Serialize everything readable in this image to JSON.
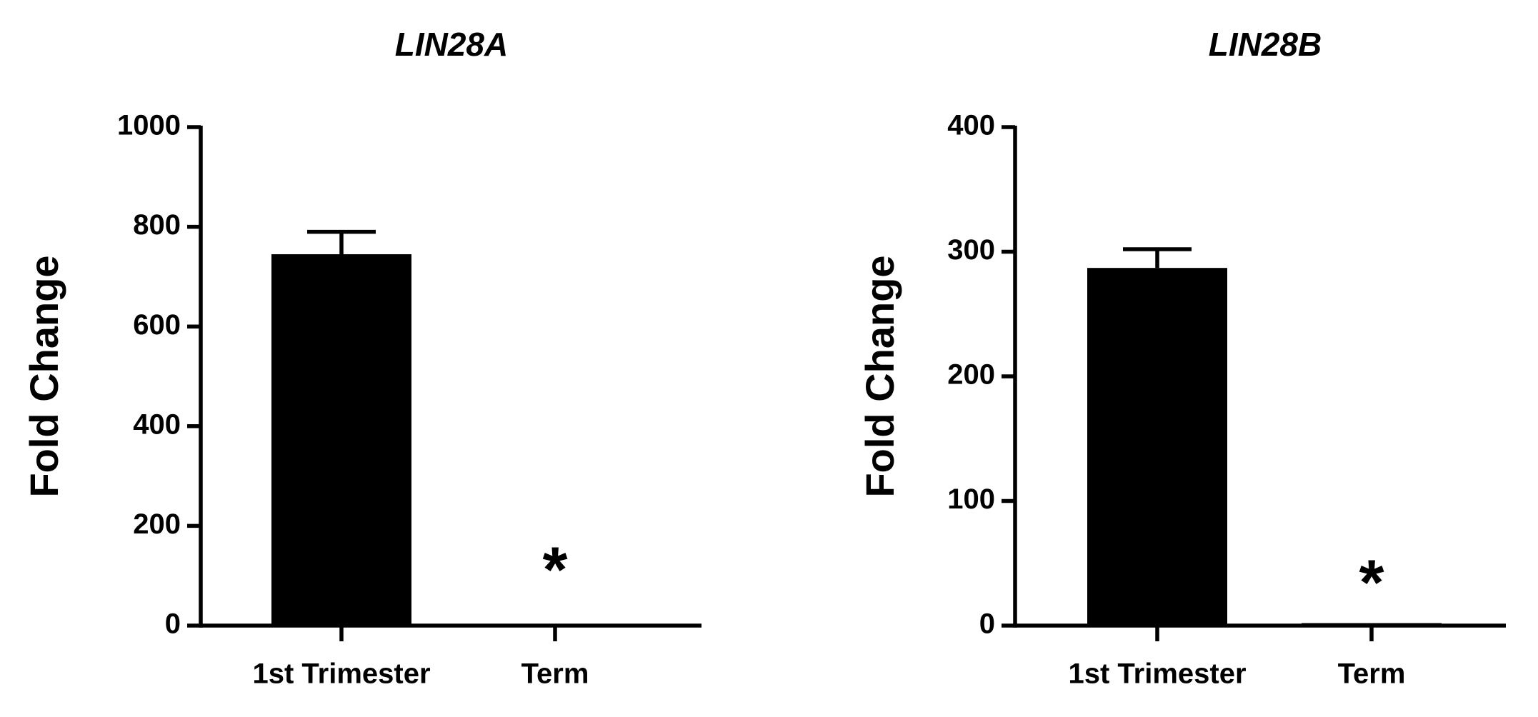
{
  "chart_data": [
    {
      "type": "bar",
      "title": "LIN28A",
      "y_label": "Fold Change",
      "categories": [
        "1st Trimester",
        "Term"
      ],
      "values": [
        745,
        2
      ],
      "errors": [
        45,
        null
      ],
      "annotations": [
        null,
        "*"
      ],
      "color": "#000000",
      "ylim": [
        0,
        1000
      ],
      "yticks": [
        0,
        200,
        400,
        600,
        800,
        1000
      ]
    },
    {
      "type": "bar",
      "title": "LIN28B",
      "y_label": "Fold Change",
      "categories": [
        "1st Trimester",
        "Term"
      ],
      "values": [
        287,
        2
      ],
      "errors": [
        15,
        null
      ],
      "annotations": [
        null,
        "*"
      ],
      "color": "#000000",
      "ylim": [
        0,
        400
      ],
      "yticks": [
        0,
        100,
        200,
        300,
        400
      ]
    }
  ]
}
